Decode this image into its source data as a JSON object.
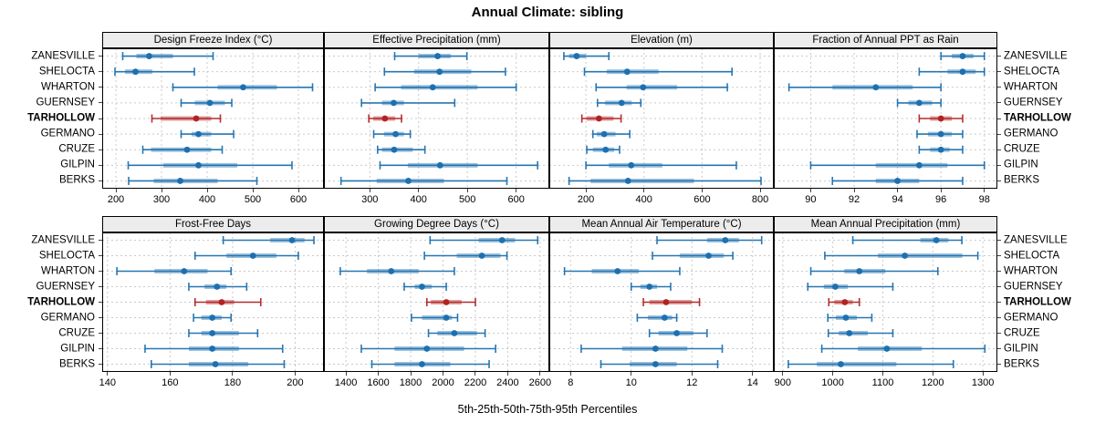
{
  "title": "Annual Climate: sibling",
  "xlabel": "5th-25th-50th-75th-95th Percentiles",
  "highlight_site": "TARHOLLOW",
  "colors": {
    "series": "#1c70b0",
    "highlight": "#b22222",
    "strip_bg": "#ececec",
    "grid": "#c9c9c9",
    "border": "#000000",
    "background": "#ffffff"
  },
  "chart_data": {
    "type": "dot-interval-trellis",
    "percentiles": [
      5,
      25,
      50,
      75,
      95
    ],
    "legend": "none",
    "grid": "dashed",
    "categories": [
      "ZANESVILLE",
      "SHELOCTA",
      "WHARTON",
      "GUERNSEY",
      "TARHOLLOW",
      "GERMANO",
      "CRUZE",
      "GILPIN",
      "BERKS"
    ],
    "panels": [
      {
        "title": "Design Freeze Index (°C)",
        "xlim": [
          170,
          656
        ],
        "ticks": [
          200,
          300,
          400,
          500,
          600
        ],
        "series": [
          [
            215,
            245,
            273,
            325,
            413
          ],
          [
            198,
            220,
            243,
            280,
            372
          ],
          [
            325,
            423,
            479,
            553,
            631
          ],
          [
            343,
            373,
            406,
            439,
            454
          ],
          [
            279,
            298,
            376,
            409,
            429
          ],
          [
            343,
            366,
            381,
            409,
            458
          ],
          [
            259,
            277,
            356,
            409,
            433
          ],
          [
            227,
            304,
            381,
            466,
            586
          ],
          [
            228,
            283,
            341,
            423,
            509
          ]
        ]
      },
      {
        "title": "Effective Precipitation (mm)",
        "xlim": [
          206,
          668
        ],
        "ticks": [
          300,
          400,
          500,
          600
        ],
        "series": [
          [
            351,
            400,
            439,
            466,
            499
          ],
          [
            330,
            391,
            443,
            508,
            578
          ],
          [
            311,
            364,
            429,
            521,
            600
          ],
          [
            283,
            325,
            349,
            370,
            474
          ],
          [
            298,
            307,
            331,
            352,
            365
          ],
          [
            308,
            329,
            353,
            370,
            383
          ],
          [
            316,
            325,
            350,
            388,
            413
          ],
          [
            321,
            378,
            444,
            521,
            644
          ],
          [
            241,
            314,
            379,
            452,
            581
          ]
        ]
      },
      {
        "title": "Elevation (m)",
        "xlim": [
          74,
          847
        ],
        "ticks": [
          200,
          400,
          600,
          800
        ],
        "series": [
          [
            124,
            142,
            168,
            200,
            279
          ],
          [
            195,
            272,
            342,
            450,
            703
          ],
          [
            235,
            340,
            397,
            514,
            687
          ],
          [
            240,
            266,
            323,
            358,
            389
          ],
          [
            186,
            202,
            245,
            295,
            321
          ],
          [
            224,
            237,
            263,
            302,
            351
          ],
          [
            203,
            224,
            268,
            297,
            316
          ],
          [
            200,
            279,
            356,
            463,
            718
          ],
          [
            142,
            216,
            345,
            572,
            803
          ]
        ]
      },
      {
        "title": "Fraction of Annual PPT as Rain",
        "xlim": [
          88.3,
          98.6
        ],
        "ticks": [
          90,
          92,
          94,
          96,
          98
        ],
        "series": [
          [
            96,
            96.5,
            97,
            97.5,
            98
          ],
          [
            95,
            96.3,
            97,
            97.6,
            98
          ],
          [
            89,
            91,
            93,
            94.7,
            96
          ],
          [
            94,
            94.5,
            95,
            95.6,
            96
          ],
          [
            95,
            95.5,
            96,
            96.5,
            97
          ],
          [
            94.9,
            95.4,
            96,
            96.5,
            97
          ],
          [
            95,
            95.5,
            96,
            96.4,
            97
          ],
          [
            90,
            93,
            95,
            96.3,
            98
          ],
          [
            91,
            93,
            94,
            95,
            97
          ]
        ]
      },
      {
        "title": "Frost-Free Days",
        "xlim": [
          138.3,
          209.2
        ],
        "ticks": [
          140,
          160,
          180,
          200
        ],
        "series": [
          [
            177,
            192,
            199,
            203,
            206
          ],
          [
            168,
            178,
            186.5,
            194,
            201
          ],
          [
            143,
            155,
            164.5,
            172,
            179.5
          ],
          [
            166,
            171,
            175,
            178,
            184.5
          ],
          [
            168,
            171.5,
            176.5,
            180.5,
            189
          ],
          [
            167.5,
            170,
            173.5,
            176.5,
            179.5
          ],
          [
            166,
            170,
            173.5,
            182,
            188
          ],
          [
            152,
            166,
            173.5,
            182,
            196
          ],
          [
            154,
            166,
            174.5,
            185,
            196.5
          ]
        ]
      },
      {
        "title": "Growing Degree Days (°C)",
        "xlim": [
          1264,
          2657
        ],
        "ticks": [
          1400,
          1600,
          1800,
          2000,
          2200,
          2400,
          2600
        ],
        "series": [
          [
            1920,
            2220,
            2365,
            2445,
            2585
          ],
          [
            1885,
            2085,
            2240,
            2355,
            2395
          ],
          [
            1365,
            1530,
            1680,
            1850,
            2070
          ],
          [
            1760,
            1825,
            1870,
            1930,
            2020
          ],
          [
            1900,
            1925,
            2020,
            2115,
            2200
          ],
          [
            1805,
            1870,
            2020,
            2055,
            2090
          ],
          [
            1910,
            1965,
            2070,
            2210,
            2260
          ],
          [
            1495,
            1700,
            1900,
            2130,
            2325
          ],
          [
            1560,
            1700,
            1870,
            2045,
            2285
          ]
        ]
      },
      {
        "title": "Mean Annual Air Temperature (°C)",
        "xlim": [
          7.3,
          14.7
        ],
        "ticks": [
          8,
          10,
          12,
          14
        ],
        "series": [
          [
            10.85,
            12.5,
            13.1,
            13.55,
            14.3
          ],
          [
            10.7,
            11.6,
            12.55,
            13.05,
            13.35
          ],
          [
            7.8,
            8.7,
            9.55,
            10.25,
            11.6
          ],
          [
            10,
            10.3,
            10.6,
            10.85,
            11.3
          ],
          [
            10.4,
            10.6,
            11.15,
            12,
            12.25
          ],
          [
            10.2,
            10.55,
            11.1,
            11.35,
            11.5
          ],
          [
            10.6,
            10.9,
            11.5,
            12.05,
            12.5
          ],
          [
            8.35,
            9.7,
            10.8,
            11.85,
            13
          ],
          [
            9,
            9.95,
            10.8,
            11.5,
            12.85
          ]
        ]
      },
      {
        "title": "Mean Annual Precipitation (mm)",
        "xlim": [
          882,
          1329
        ],
        "ticks": [
          900,
          1000,
          1100,
          1200,
          1300
        ],
        "series": [
          [
            1040,
            1175,
            1207,
            1231,
            1258
          ],
          [
            984,
            1090,
            1144,
            1259,
            1290
          ],
          [
            956,
            1023,
            1053,
            1105,
            1210
          ],
          [
            950,
            982,
            1005,
            1030,
            1120
          ],
          [
            992,
            1003,
            1024,
            1040,
            1053
          ],
          [
            990,
            1006,
            1026,
            1048,
            1078
          ],
          [
            991,
            1012,
            1033,
            1070,
            1120
          ],
          [
            978,
            1050,
            1108,
            1178,
            1304
          ],
          [
            911,
            968,
            1016,
            1127,
            1241
          ]
        ]
      }
    ]
  }
}
